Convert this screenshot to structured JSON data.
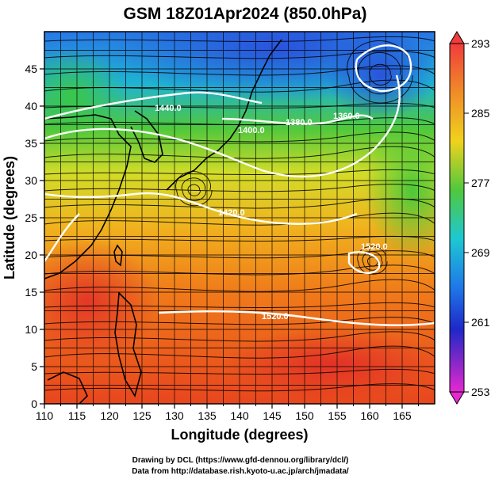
{
  "title": "GSM 18Z01Apr2024 (850.0hPa)",
  "map": {
    "xlabel": "Longitude (degrees)",
    "ylabel": "Latitude  (degrees)",
    "lon_range": [
      110,
      170
    ],
    "lat_range": [
      0,
      50
    ],
    "lon_ticks": [
      "110",
      "115",
      "120",
      "125",
      "130",
      "135",
      "140",
      "145",
      "150",
      "155",
      "160",
      "165"
    ],
    "lat_ticks": [
      "0",
      "5",
      "10",
      "15",
      "20",
      "25",
      "30",
      "35",
      "40",
      "45"
    ],
    "contour_labels": [
      "1440.0",
      "1400.0",
      "1380.0",
      "1360.0",
      "1420.0",
      "1520.0",
      "1520.0"
    ],
    "colors": {
      "warm": "#e8321e",
      "hot": "#f07a1a",
      "mild": "#f0c81e",
      "cool": "#3cc83c",
      "cold": "#1e9be8",
      "coldest": "#1e46d2"
    }
  },
  "colorbar": {
    "ticks": [
      "293",
      "285",
      "277",
      "269",
      "261",
      "253"
    ],
    "colors": [
      "#f03c3c",
      "#f08c28",
      "#f0d21e",
      "#50c83c",
      "#1ec8d2",
      "#1e78e8",
      "#1e28c8",
      "#8c28c8",
      "#e628d2"
    ]
  },
  "credits": {
    "line1": "Drawing by DCL (https://www.gfd-dennou.org/library/dcl/)",
    "line2": "Data from http://database.rish.kyoto-u.ac.jp/arch/jmadata/"
  }
}
